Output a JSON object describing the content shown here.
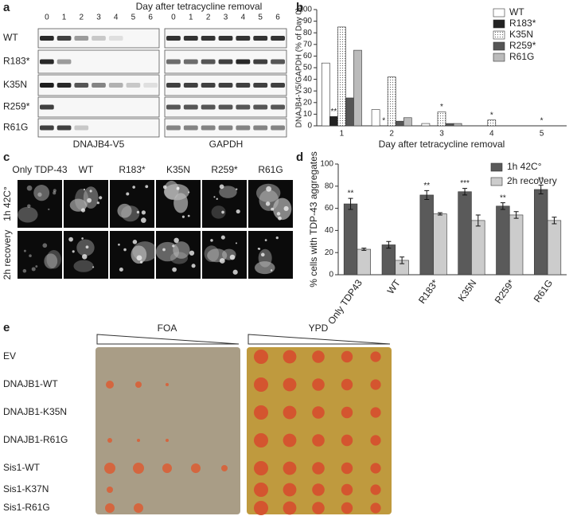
{
  "panel_labels": [
    "a",
    "b",
    "c",
    "d",
    "e"
  ],
  "blot": {
    "title": "Day after tetracycline removal",
    "lanes": [
      "0",
      "1",
      "2",
      "3",
      "4",
      "5",
      "6"
    ],
    "rows": [
      "WT",
      "R183*",
      "K35N",
      "R259*",
      "R61G"
    ],
    "columns": [
      "DNAJB4-V5",
      "GAPDH"
    ]
  },
  "chart_data": [
    {
      "type": "bar",
      "categories": [
        1,
        2,
        3,
        4,
        5
      ],
      "xlabel": "Day after tetracycline removal",
      "ylabel": "DNAJB4-V5/GAPDH (% of Day 0)",
      "ylim": [
        0,
        100
      ],
      "yticks": [
        0,
        10,
        20,
        30,
        40,
        50,
        60,
        70,
        80,
        90,
        100
      ],
      "legend": "top-right",
      "series": [
        {
          "name": "WT",
          "color": "#ffffff",
          "values": [
            54,
            14,
            2,
            0,
            0
          ],
          "significance": [
            null,
            null,
            null,
            null,
            null
          ]
        },
        {
          "name": "R183*",
          "color": "#222222",
          "values": [
            8,
            0,
            0,
            0,
            0
          ],
          "significance": [
            "**",
            "*",
            null,
            null,
            null
          ]
        },
        {
          "name": "K35N",
          "color": "#eeeeee",
          "values": [
            85,
            42,
            12,
            5,
            0
          ],
          "significance": [
            null,
            null,
            "*",
            "*",
            "*"
          ]
        },
        {
          "name": "R259*",
          "color": "#555555",
          "values": [
            24,
            4,
            2,
            0,
            0
          ],
          "significance": [
            null,
            null,
            null,
            null,
            null
          ]
        },
        {
          "name": "R61G",
          "color": "#bbbbbb",
          "values": [
            65,
            7,
            2,
            0,
            0
          ],
          "significance": [
            null,
            null,
            null,
            null,
            null
          ]
        }
      ]
    },
    {
      "type": "bar",
      "categories": [
        "Only TDP43",
        "WT",
        "R183*",
        "K35N",
        "R259*",
        "R61G"
      ],
      "ylabel": "% cells with TDP-43 aggregates",
      "ylim": [
        0,
        100
      ],
      "yticks": [
        0,
        20,
        40,
        60,
        80,
        100
      ],
      "legend": "top-right",
      "series": [
        {
          "name": "1h 42C°",
          "color": "#5a5a5a",
          "values": [
            64,
            27,
            72,
            75,
            62,
            77
          ],
          "errors": [
            5,
            3,
            4,
            3,
            3,
            4
          ],
          "significance": [
            "**",
            null,
            "**",
            "***",
            "**",
            "**"
          ]
        },
        {
          "name": "2h recovery",
          "color": "#cccccc",
          "values": [
            23,
            13,
            55,
            49,
            54,
            49
          ],
          "errors": [
            1,
            3,
            1,
            5,
            3,
            3
          ],
          "significance": [
            null,
            null,
            null,
            null,
            null,
            null
          ]
        }
      ]
    }
  ],
  "microscopy": {
    "columns": [
      "Only TDP-43",
      "WT",
      "R183*",
      "K35N",
      "R259*",
      "R61G"
    ],
    "rows": [
      "1h 42C°",
      "2h recovery"
    ]
  },
  "plates": {
    "media": [
      "FOA",
      "YPD"
    ],
    "strains": [
      "EV",
      "DNAJB1-WT",
      "DNAJB1-K35N",
      "DNAJB1-R61G",
      "Sis1-WT",
      "Sis1-K37N",
      "Sis1-R61G"
    ]
  }
}
